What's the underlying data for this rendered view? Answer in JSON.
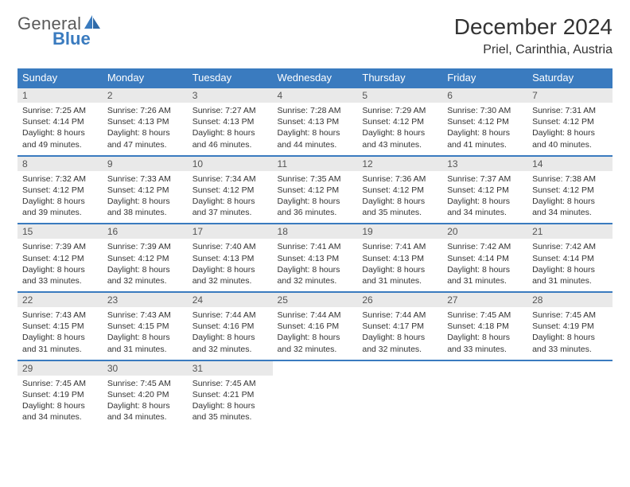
{
  "logo": {
    "line1": "General",
    "line2": "Blue"
  },
  "header": {
    "title": "December 2024",
    "location": "Priel, Carinthia, Austria"
  },
  "colors": {
    "header_bg": "#3a7bbf",
    "daynum_bg": "#e9e9e9",
    "rule": "#3a7bbf",
    "text": "#333333",
    "logo_gray": "#5a5a5a",
    "logo_blue": "#3a7bbf",
    "bg": "#ffffff"
  },
  "weekdays": [
    "Sunday",
    "Monday",
    "Tuesday",
    "Wednesday",
    "Thursday",
    "Friday",
    "Saturday"
  ],
  "weeks": [
    [
      {
        "n": "1",
        "sunrise": "7:25 AM",
        "sunset": "4:14 PM",
        "dl": "8 hours and 49 minutes."
      },
      {
        "n": "2",
        "sunrise": "7:26 AM",
        "sunset": "4:13 PM",
        "dl": "8 hours and 47 minutes."
      },
      {
        "n": "3",
        "sunrise": "7:27 AM",
        "sunset": "4:13 PM",
        "dl": "8 hours and 46 minutes."
      },
      {
        "n": "4",
        "sunrise": "7:28 AM",
        "sunset": "4:13 PM",
        "dl": "8 hours and 44 minutes."
      },
      {
        "n": "5",
        "sunrise": "7:29 AM",
        "sunset": "4:12 PM",
        "dl": "8 hours and 43 minutes."
      },
      {
        "n": "6",
        "sunrise": "7:30 AM",
        "sunset": "4:12 PM",
        "dl": "8 hours and 41 minutes."
      },
      {
        "n": "7",
        "sunrise": "7:31 AM",
        "sunset": "4:12 PM",
        "dl": "8 hours and 40 minutes."
      }
    ],
    [
      {
        "n": "8",
        "sunrise": "7:32 AM",
        "sunset": "4:12 PM",
        "dl": "8 hours and 39 minutes."
      },
      {
        "n": "9",
        "sunrise": "7:33 AM",
        "sunset": "4:12 PM",
        "dl": "8 hours and 38 minutes."
      },
      {
        "n": "10",
        "sunrise": "7:34 AM",
        "sunset": "4:12 PM",
        "dl": "8 hours and 37 minutes."
      },
      {
        "n": "11",
        "sunrise": "7:35 AM",
        "sunset": "4:12 PM",
        "dl": "8 hours and 36 minutes."
      },
      {
        "n": "12",
        "sunrise": "7:36 AM",
        "sunset": "4:12 PM",
        "dl": "8 hours and 35 minutes."
      },
      {
        "n": "13",
        "sunrise": "7:37 AM",
        "sunset": "4:12 PM",
        "dl": "8 hours and 34 minutes."
      },
      {
        "n": "14",
        "sunrise": "7:38 AM",
        "sunset": "4:12 PM",
        "dl": "8 hours and 34 minutes."
      }
    ],
    [
      {
        "n": "15",
        "sunrise": "7:39 AM",
        "sunset": "4:12 PM",
        "dl": "8 hours and 33 minutes."
      },
      {
        "n": "16",
        "sunrise": "7:39 AM",
        "sunset": "4:12 PM",
        "dl": "8 hours and 32 minutes."
      },
      {
        "n": "17",
        "sunrise": "7:40 AM",
        "sunset": "4:13 PM",
        "dl": "8 hours and 32 minutes."
      },
      {
        "n": "18",
        "sunrise": "7:41 AM",
        "sunset": "4:13 PM",
        "dl": "8 hours and 32 minutes."
      },
      {
        "n": "19",
        "sunrise": "7:41 AM",
        "sunset": "4:13 PM",
        "dl": "8 hours and 31 minutes."
      },
      {
        "n": "20",
        "sunrise": "7:42 AM",
        "sunset": "4:14 PM",
        "dl": "8 hours and 31 minutes."
      },
      {
        "n": "21",
        "sunrise": "7:42 AM",
        "sunset": "4:14 PM",
        "dl": "8 hours and 31 minutes."
      }
    ],
    [
      {
        "n": "22",
        "sunrise": "7:43 AM",
        "sunset": "4:15 PM",
        "dl": "8 hours and 31 minutes."
      },
      {
        "n": "23",
        "sunrise": "7:43 AM",
        "sunset": "4:15 PM",
        "dl": "8 hours and 31 minutes."
      },
      {
        "n": "24",
        "sunrise": "7:44 AM",
        "sunset": "4:16 PM",
        "dl": "8 hours and 32 minutes."
      },
      {
        "n": "25",
        "sunrise": "7:44 AM",
        "sunset": "4:16 PM",
        "dl": "8 hours and 32 minutes."
      },
      {
        "n": "26",
        "sunrise": "7:44 AM",
        "sunset": "4:17 PM",
        "dl": "8 hours and 32 minutes."
      },
      {
        "n": "27",
        "sunrise": "7:45 AM",
        "sunset": "4:18 PM",
        "dl": "8 hours and 33 minutes."
      },
      {
        "n": "28",
        "sunrise": "7:45 AM",
        "sunset": "4:19 PM",
        "dl": "8 hours and 33 minutes."
      }
    ],
    [
      {
        "n": "29",
        "sunrise": "7:45 AM",
        "sunset": "4:19 PM",
        "dl": "8 hours and 34 minutes."
      },
      {
        "n": "30",
        "sunrise": "7:45 AM",
        "sunset": "4:20 PM",
        "dl": "8 hours and 34 minutes."
      },
      {
        "n": "31",
        "sunrise": "7:45 AM",
        "sunset": "4:21 PM",
        "dl": "8 hours and 35 minutes."
      },
      null,
      null,
      null,
      null
    ]
  ],
  "labels": {
    "sunrise": "Sunrise:",
    "sunset": "Sunset:",
    "daylight": "Daylight:"
  }
}
